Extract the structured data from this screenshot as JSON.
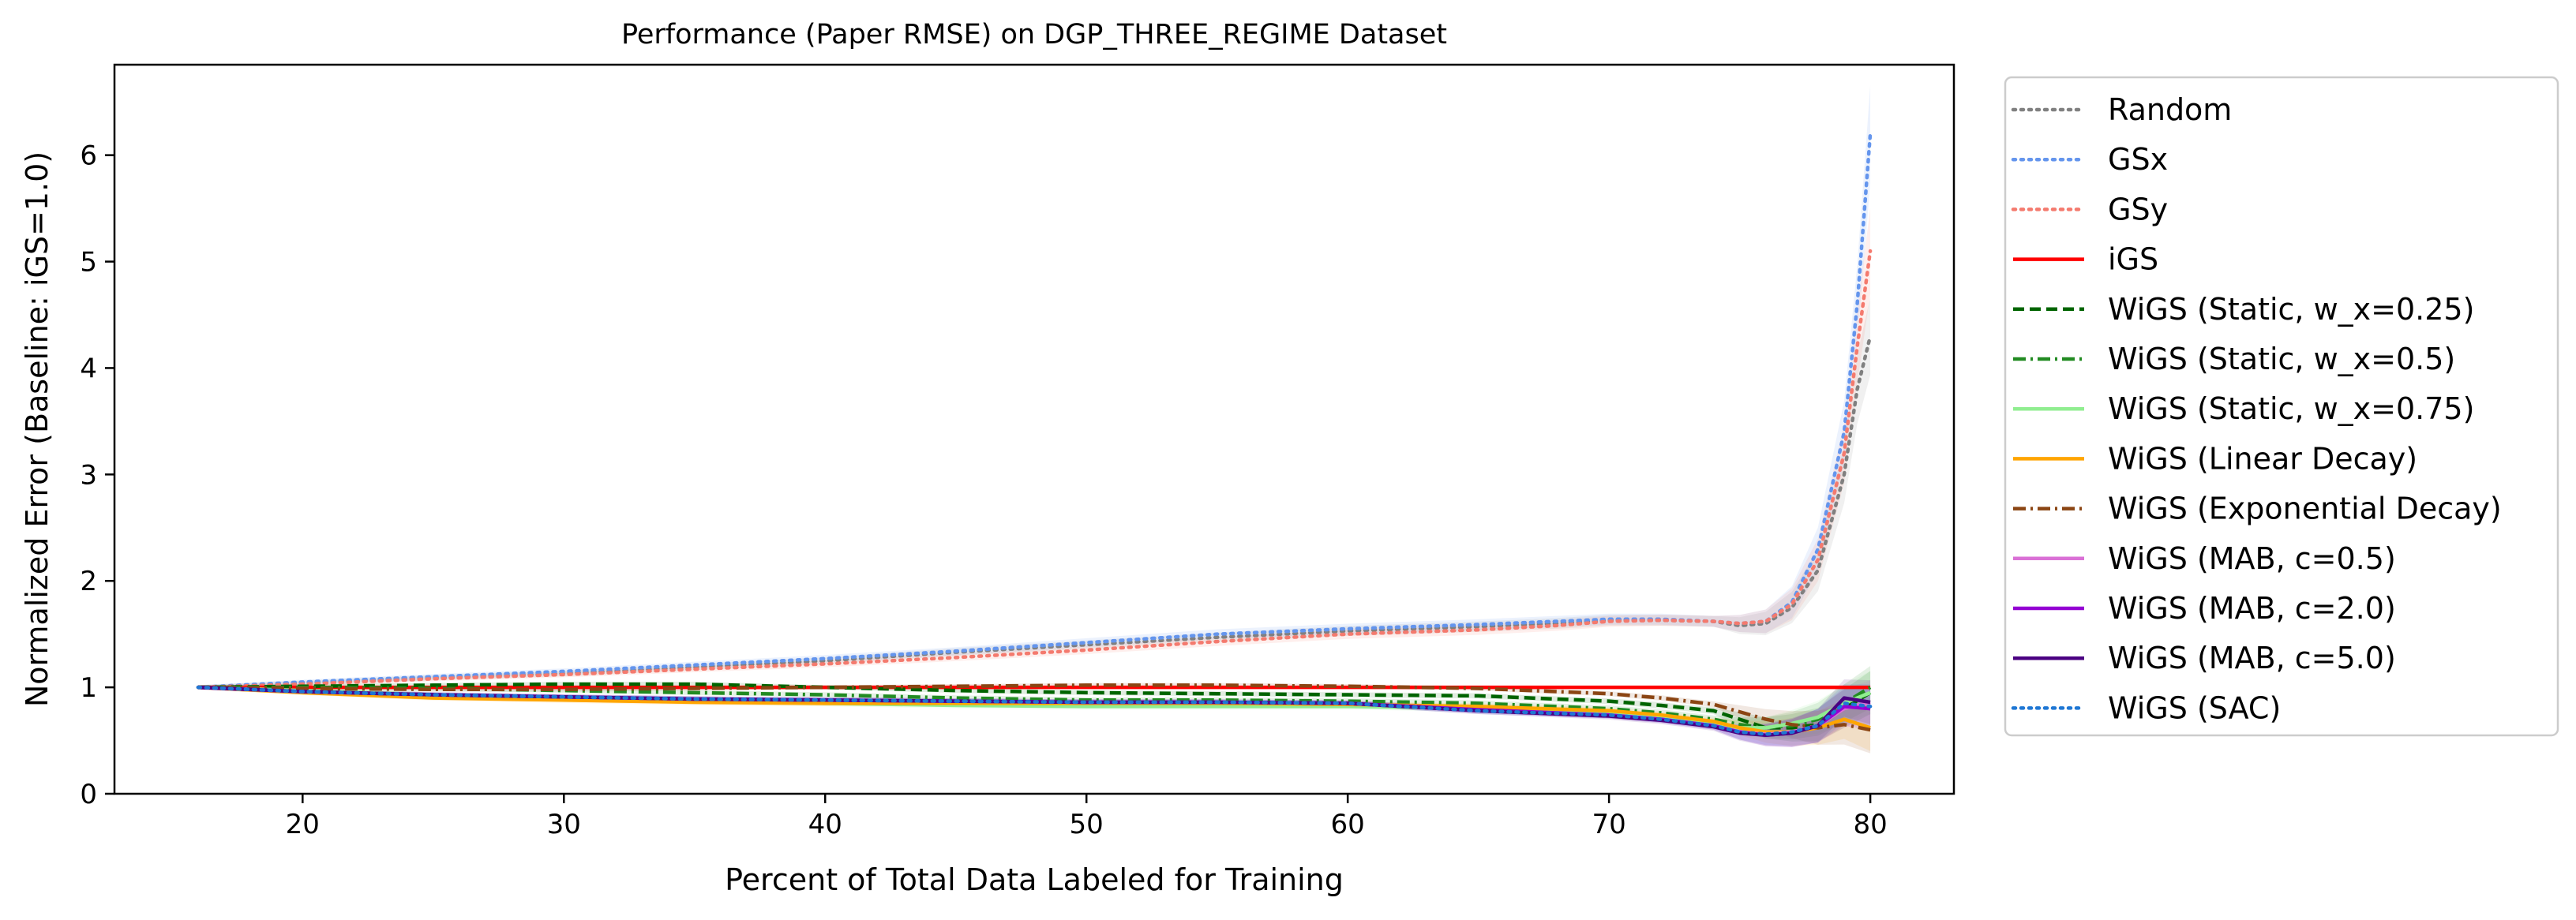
{
  "chart_data": {
    "type": "line",
    "title": "Performance (Paper RMSE) on DGP_THREE_REGIME Dataset",
    "xlabel": "Percent of Total Data Labeled for Training",
    "ylabel": "Normalized Error (Baseline: iGS=1.0)",
    "xlim": [
      12.8,
      83.2
    ],
    "ylim": [
      0,
      6.85
    ],
    "xticks": [
      20,
      30,
      40,
      50,
      60,
      70,
      80
    ],
    "yticks": [
      0,
      1,
      2,
      3,
      4,
      5,
      6
    ],
    "grid": false,
    "legend_position": "outside-right",
    "series": [
      {
        "name": "Random",
        "color": "#808080",
        "dash": "dotted",
        "x": [
          16,
          20,
          25,
          30,
          35,
          40,
          45,
          50,
          55,
          60,
          65,
          68,
          70,
          72,
          74,
          75,
          76,
          77,
          78,
          79,
          79.5,
          80
        ],
        "y": [
          1.0,
          1.04,
          1.09,
          1.13,
          1.19,
          1.25,
          1.33,
          1.4,
          1.47,
          1.53,
          1.57,
          1.6,
          1.63,
          1.63,
          1.62,
          1.58,
          1.6,
          1.75,
          2.1,
          3.0,
          3.8,
          4.3
        ]
      },
      {
        "name": "GSx",
        "color": "#6495ed",
        "dash": "dotted",
        "x": [
          16,
          20,
          25,
          30,
          35,
          40,
          45,
          50,
          55,
          60,
          65,
          68,
          70,
          72,
          74,
          75,
          76,
          77,
          78,
          79,
          79.5,
          80
        ],
        "y": [
          1.0,
          1.05,
          1.1,
          1.15,
          1.21,
          1.27,
          1.34,
          1.42,
          1.5,
          1.55,
          1.59,
          1.62,
          1.64,
          1.64,
          1.62,
          1.6,
          1.62,
          1.8,
          2.3,
          3.4,
          4.6,
          6.2
        ]
      },
      {
        "name": "GSy",
        "color": "#f47a6e",
        "dash": "dotted",
        "x": [
          16,
          20,
          25,
          30,
          35,
          40,
          45,
          50,
          55,
          60,
          65,
          68,
          70,
          72,
          74,
          75,
          76,
          77,
          78,
          79,
          79.5,
          80
        ],
        "y": [
          1.0,
          1.03,
          1.08,
          1.12,
          1.17,
          1.22,
          1.28,
          1.35,
          1.43,
          1.5,
          1.54,
          1.58,
          1.62,
          1.63,
          1.62,
          1.6,
          1.62,
          1.78,
          2.2,
          3.2,
          4.2,
          5.1
        ]
      },
      {
        "name": "iGS",
        "color": "#ff0000",
        "dash": "solid",
        "x": [
          16,
          80
        ],
        "y": [
          1.0,
          1.0
        ]
      },
      {
        "name": "WiGS (Static, w_x=0.25)",
        "color": "#006400",
        "dash": "dashed",
        "x": [
          16,
          20,
          25,
          30,
          35,
          40,
          45,
          50,
          55,
          60,
          65,
          70,
          72,
          74,
          75,
          76,
          77,
          78,
          79,
          80
        ],
        "y": [
          1.0,
          1.01,
          1.02,
          1.03,
          1.03,
          1.0,
          0.97,
          0.95,
          0.94,
          0.93,
          0.92,
          0.87,
          0.83,
          0.78,
          0.7,
          0.62,
          0.62,
          0.65,
          0.8,
          0.95
        ]
      },
      {
        "name": "WiGS (Static, w_x=0.5)",
        "color": "#228b22",
        "dash": "dashdot",
        "x": [
          16,
          20,
          25,
          30,
          35,
          40,
          45,
          50,
          55,
          60,
          65,
          70,
          72,
          74,
          75,
          76,
          77,
          78,
          79,
          80
        ],
        "y": [
          1.0,
          1.0,
          0.99,
          0.97,
          0.95,
          0.93,
          0.9,
          0.88,
          0.88,
          0.87,
          0.85,
          0.8,
          0.76,
          0.7,
          0.65,
          0.62,
          0.64,
          0.7,
          0.85,
          1.0
        ]
      },
      {
        "name": "WiGS (Static, w_x=0.75)",
        "color": "#90ee90",
        "dash": "solid",
        "x": [
          16,
          20,
          25,
          30,
          35,
          40,
          45,
          50,
          55,
          60,
          65,
          70,
          72,
          74,
          75,
          76,
          77,
          78,
          79,
          80
        ],
        "y": [
          1.0,
          0.97,
          0.93,
          0.9,
          0.87,
          0.85,
          0.83,
          0.82,
          0.82,
          0.82,
          0.8,
          0.76,
          0.72,
          0.66,
          0.62,
          0.62,
          0.66,
          0.72,
          0.85,
          0.95
        ]
      },
      {
        "name": "WiGS (Linear Decay)",
        "color": "#ffa500",
        "dash": "solid",
        "x": [
          16,
          20,
          25,
          30,
          35,
          40,
          45,
          50,
          55,
          60,
          65,
          70,
          72,
          74,
          75,
          76,
          77,
          78,
          79,
          80
        ],
        "y": [
          1.0,
          0.95,
          0.9,
          0.88,
          0.86,
          0.85,
          0.85,
          0.85,
          0.85,
          0.84,
          0.82,
          0.78,
          0.74,
          0.68,
          0.62,
          0.58,
          0.58,
          0.62,
          0.7,
          0.62
        ]
      },
      {
        "name": "WiGS (Exponential Decay)",
        "color": "#8b4513",
        "dash": "dashdot",
        "x": [
          16,
          20,
          25,
          30,
          35,
          40,
          45,
          50,
          55,
          60,
          65,
          70,
          72,
          74,
          75,
          76,
          77,
          78,
          79,
          80
        ],
        "y": [
          1.0,
          0.99,
          0.98,
          0.98,
          0.99,
          1.0,
          1.01,
          1.02,
          1.02,
          1.01,
          0.99,
          0.94,
          0.9,
          0.84,
          0.77,
          0.7,
          0.65,
          0.62,
          0.65,
          0.6
        ]
      },
      {
        "name": "WiGS (MAB, c=0.5)",
        "color": "#da70d6",
        "dash": "solid",
        "x": [
          16,
          20,
          25,
          30,
          35,
          40,
          45,
          50,
          55,
          60,
          65,
          70,
          72,
          74,
          75,
          76,
          77,
          78,
          79,
          80
        ],
        "y": [
          1.0,
          0.96,
          0.93,
          0.91,
          0.89,
          0.88,
          0.87,
          0.86,
          0.86,
          0.85,
          0.78,
          0.74,
          0.7,
          0.64,
          0.58,
          0.56,
          0.58,
          0.64,
          0.8,
          0.86
        ]
      },
      {
        "name": "WiGS (MAB, c=2.0)",
        "color": "#9400d3",
        "dash": "solid",
        "x": [
          16,
          20,
          25,
          30,
          35,
          40,
          45,
          50,
          55,
          60,
          65,
          70,
          72,
          74,
          75,
          76,
          77,
          78,
          79,
          80
        ],
        "y": [
          1.0,
          0.96,
          0.93,
          0.91,
          0.89,
          0.88,
          0.87,
          0.86,
          0.86,
          0.85,
          0.79,
          0.74,
          0.7,
          0.64,
          0.58,
          0.55,
          0.57,
          0.64,
          0.82,
          0.8
        ]
      },
      {
        "name": "WiGS (MAB, c=5.0)",
        "color": "#4b0082",
        "dash": "solid",
        "x": [
          16,
          20,
          25,
          30,
          35,
          40,
          45,
          50,
          55,
          60,
          65,
          70,
          72,
          74,
          75,
          76,
          77,
          78,
          79,
          80
        ],
        "y": [
          1.0,
          0.96,
          0.93,
          0.91,
          0.89,
          0.88,
          0.87,
          0.86,
          0.86,
          0.85,
          0.78,
          0.73,
          0.69,
          0.63,
          0.57,
          0.55,
          0.57,
          0.64,
          0.9,
          0.86
        ]
      },
      {
        "name": "WiGS (SAC)",
        "color": "#1f77d4",
        "dash": "dotted",
        "x": [
          16,
          20,
          25,
          30,
          35,
          40,
          45,
          50,
          55,
          60,
          65,
          70,
          72,
          74,
          75,
          76,
          77,
          78,
          79,
          80
        ],
        "y": [
          1.0,
          0.96,
          0.93,
          0.91,
          0.89,
          0.88,
          0.87,
          0.86,
          0.86,
          0.85,
          0.78,
          0.74,
          0.7,
          0.64,
          0.58,
          0.56,
          0.58,
          0.64,
          0.85,
          0.82
        ]
      }
    ]
  }
}
